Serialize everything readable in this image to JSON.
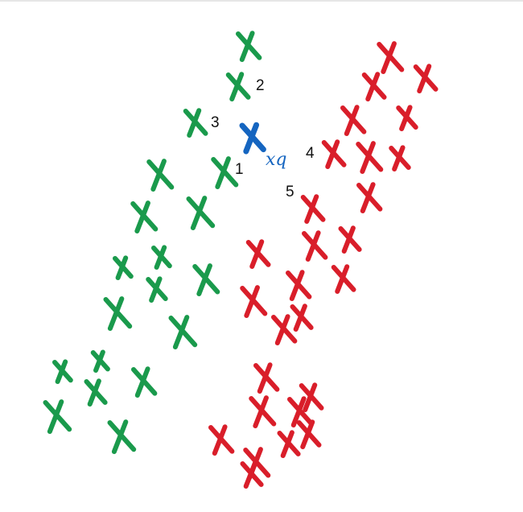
{
  "colors": {
    "class_a": "#1a9a4c",
    "class_b": "#d91e2a",
    "query": "#1565c0",
    "label": "#111111"
  },
  "marker_icon": "cross-mark-icon",
  "query": {
    "label": "xq"
  },
  "neighbor_labels": [
    "1",
    "2",
    "3",
    "4",
    "5"
  ]
}
